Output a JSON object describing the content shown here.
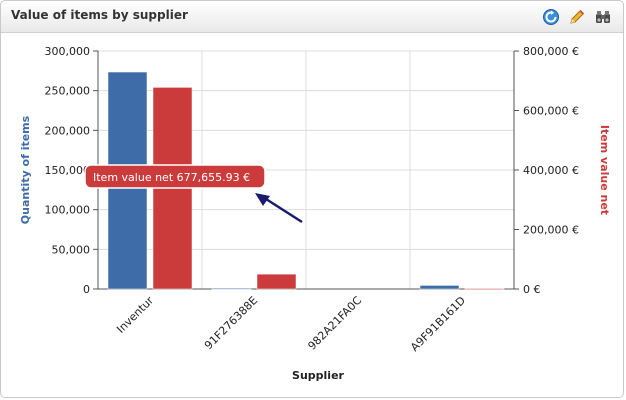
{
  "panel": {
    "title": "Value of items by supplier",
    "tools": [
      {
        "name": "refresh-icon"
      },
      {
        "name": "edit-pencil-icon"
      },
      {
        "name": "binoculars-icon"
      }
    ]
  },
  "chart_data": {
    "type": "bar",
    "title": "",
    "xlabel": "Supplier",
    "categories": [
      "Inventur",
      "91F276388E",
      "982A21FA0C",
      "A9F91B161D"
    ],
    "y_left": {
      "label": "Quantity of items",
      "range": [
        0,
        300000
      ],
      "ticks": [
        "0",
        "50,000",
        "100,000",
        "150,000",
        "200,000",
        "250,000",
        "300,000"
      ],
      "color": "#c0c0c0"
    },
    "y_right": {
      "label": "Item value net",
      "range": [
        0,
        800000
      ],
      "ticks": [
        "0 €",
        "200,000 €",
        "400,000 €",
        "600,000 €",
        "800,000 €"
      ],
      "color": "#c0c0c0"
    },
    "series": [
      {
        "name": "Quantity of items",
        "axis": "left",
        "color": "#3d6ca8",
        "values": [
          273500,
          800,
          0,
          4500
        ]
      },
      {
        "name": "Item value net",
        "axis": "right",
        "color": "#cc3b3b",
        "values": [
          677655.93,
          50000,
          0,
          1500
        ]
      }
    ],
    "grid": true,
    "tooltip": {
      "text": "Item value net 677,655.93 €",
      "color": "#cc3b3b"
    },
    "annotation_arrow_color": "#1a1a6e"
  }
}
